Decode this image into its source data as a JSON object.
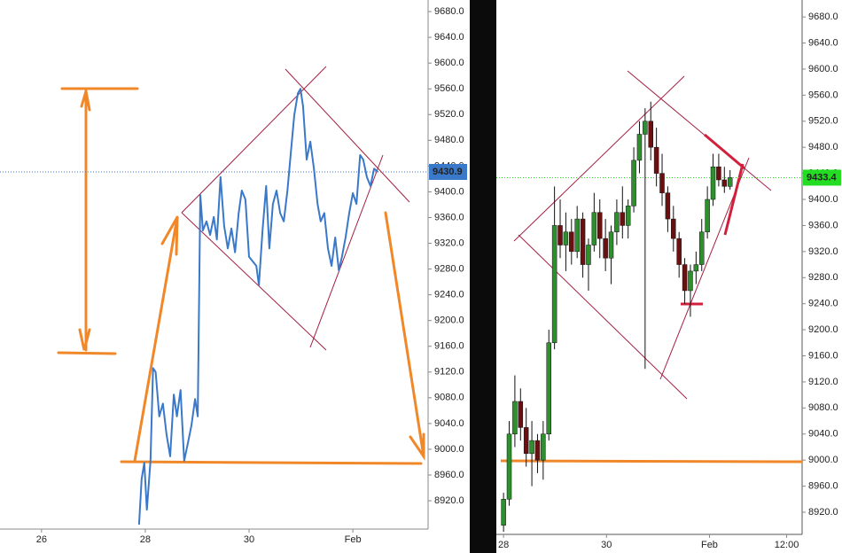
{
  "chart_data": [
    {
      "type": "line",
      "color": "#3a78c9",
      "x": [
        27.88,
        27.93,
        27.98,
        28.03,
        28.1,
        28.15,
        28.2,
        28.27,
        28.34,
        28.41,
        28.48,
        28.55,
        28.61,
        28.68,
        28.75,
        28.82,
        28.89,
        28.96,
        29.01,
        29.06,
        29.11,
        29.18,
        29.25,
        29.32,
        29.38,
        29.45,
        29.52,
        29.59,
        29.66,
        29.73,
        29.8,
        29.86,
        29.93,
        30.0,
        30.07,
        30.14,
        30.19,
        30.26,
        30.33,
        30.39,
        30.46,
        30.53,
        30.6,
        30.67,
        30.74,
        30.8,
        30.87,
        30.94,
        30.99,
        31.04,
        31.11,
        31.18,
        31.25,
        31.32,
        31.38,
        31.45,
        31.52,
        31.59,
        31.66,
        31.73,
        31.79,
        31.86,
        31.93,
        32.0,
        32.07,
        32.14,
        32.2,
        32.27,
        32.34,
        32.41,
        32.48
      ],
      "values": [
        8883,
        8954,
        8979,
        8906,
        8982,
        9126,
        9120,
        9051,
        9071,
        9023,
        8989,
        9085,
        9051,
        9092,
        8982,
        9009,
        9037,
        9078,
        9051,
        9395,
        9340,
        9354,
        9333,
        9361,
        9326,
        9423,
        9347,
        9312,
        9343,
        9306,
        9367,
        9402,
        9388,
        9299,
        9292,
        9285,
        9255,
        9340,
        9409,
        9312,
        9381,
        9402,
        9367,
        9354,
        9402,
        9457,
        9519,
        9553,
        9560,
        9533,
        9450,
        9478,
        9436,
        9381,
        9354,
        9367,
        9312,
        9285,
        9329,
        9278,
        9299,
        9329,
        9367,
        9398,
        9381,
        9457,
        9450,
        9423,
        9409,
        9436,
        9431
      ],
      "last_price": 9430.9,
      "last_color": "#3a78c9",
      "xlim": [
        25.2,
        33.45
      ],
      "ylim": [
        8876,
        9698
      ],
      "xticks": [
        26,
        28,
        30,
        {
          "value": 32,
          "label": "Feb"
        }
      ],
      "yticks": [
        {
          "value": 9680,
          "label": "9680.0"
        },
        {
          "value": 9640,
          "label": "9640.0"
        },
        {
          "value": 9600,
          "label": "9600.0"
        },
        {
          "value": 9560,
          "label": "9560.0"
        },
        {
          "value": 9520,
          "label": "9520.0"
        },
        {
          "value": 9480,
          "label": "9480.0"
        },
        {
          "value": 9440,
          "label": "9440.0"
        },
        {
          "value": 9400,
          "label": "9400.0"
        },
        {
          "value": 9360,
          "label": "9360.0"
        },
        {
          "value": 9320,
          "label": "9320.0"
        },
        {
          "value": 9280,
          "label": "9280.0"
        },
        {
          "value": 9240,
          "label": "9240.0"
        },
        {
          "value": 9200,
          "label": "9200.0"
        },
        {
          "value": 9160,
          "label": "9160.0"
        },
        {
          "value": 9120,
          "label": "9120.0"
        },
        {
          "value": 9080,
          "label": "9080.0"
        },
        {
          "value": 9040,
          "label": "9040.0"
        },
        {
          "value": 9000,
          "label": "9000.0"
        },
        {
          "value": 8960,
          "label": "8960.0"
        },
        {
          "value": 8920,
          "label": "8920.0"
        }
      ]
    },
    {
      "type": "candlestick",
      "up_color": "#2f8f2f",
      "down_color": "#6a1010",
      "x": [
        28.0,
        28.11,
        28.22,
        28.33,
        28.44,
        28.55,
        28.66,
        28.77,
        28.88,
        28.99,
        29.1,
        29.21,
        29.32,
        29.43,
        29.54,
        29.65,
        29.76,
        29.87,
        29.98,
        30.09,
        30.2,
        30.31,
        30.42,
        30.53,
        30.64,
        30.75,
        30.86,
        30.97,
        31.08,
        31.19,
        31.3,
        31.41,
        31.52,
        31.63,
        31.74,
        31.85,
        31.96,
        32.07,
        32.18,
        32.29,
        32.4
      ],
      "open": [
        8900,
        8940,
        9040,
        9090,
        9050,
        9010,
        9030,
        9000,
        9040,
        9180,
        9360,
        9330,
        9350,
        9320,
        9370,
        9300,
        9330,
        9380,
        9340,
        9310,
        9350,
        9380,
        9360,
        9390,
        9460,
        9500,
        9520,
        9480,
        9440,
        9410,
        9370,
        9340,
        9300,
        9260,
        9290,
        9300,
        9350,
        9400,
        9450,
        9430,
        9420
      ],
      "high": [
        8950,
        9060,
        9130,
        9110,
        9080,
        9060,
        9040,
        9060,
        9200,
        9420,
        9400,
        9380,
        9370,
        9390,
        9380,
        9340,
        9410,
        9400,
        9370,
        9360,
        9400,
        9420,
        9400,
        9480,
        9520,
        9540,
        9550,
        9510,
        9470,
        9420,
        9390,
        9350,
        9310,
        9300,
        9320,
        9370,
        9420,
        9470,
        9470,
        9450,
        9445
      ],
      "low": [
        8890,
        8930,
        9020,
        9030,
        8990,
        8960,
        8980,
        8970,
        9030,
        9170,
        9310,
        9290,
        9300,
        9310,
        9280,
        9260,
        9320,
        9310,
        9290,
        9270,
        9330,
        9340,
        9340,
        9380,
        9440,
        9140,
        9460,
        9420,
        9390,
        9350,
        9320,
        9280,
        9240,
        9220,
        9270,
        9290,
        9340,
        9390,
        9420,
        9410,
        9415
      ],
      "close": [
        8940,
        9040,
        9090,
        9050,
        9010,
        9030,
        9000,
        9040,
        9180,
        9360,
        9330,
        9350,
        9320,
        9370,
        9300,
        9330,
        9380,
        9340,
        9310,
        9350,
        9380,
        9360,
        9390,
        9460,
        9500,
        9520,
        9480,
        9440,
        9410,
        9370,
        9340,
        9300,
        9260,
        9290,
        9300,
        9350,
        9400,
        9450,
        9430,
        9420,
        9433.4
      ],
      "last_price": 9433.4,
      "last_color": "#22dd22",
      "xlim": [
        27.86,
        33.8
      ],
      "ylim": [
        8886,
        9706
      ],
      "xticks": [
        28,
        30,
        {
          "value": 32,
          "label": "Feb"
        },
        {
          "value": 33.5,
          "label": "12:00"
        }
      ],
      "yticks": [
        {
          "value": 9680,
          "label": "9680.0"
        },
        {
          "value": 9640,
          "label": "9640.0"
        },
        {
          "value": 9600,
          "label": "9600.0"
        },
        {
          "value": 9560,
          "label": "9560.0"
        },
        {
          "value": 9520,
          "label": "9520.0"
        },
        {
          "value": 9480,
          "label": "9480.0"
        },
        {
          "value": 9440,
          "label": "9440.0"
        },
        {
          "value": 9400,
          "label": "9400.0"
        },
        {
          "value": 9360,
          "label": "9360.0"
        },
        {
          "value": 9320,
          "label": "9320.0"
        },
        {
          "value": 9280,
          "label": "9280.0"
        },
        {
          "value": 9240,
          "label": "9240.0"
        },
        {
          "value": 9200,
          "label": "9200.0"
        },
        {
          "value": 9160,
          "label": "9160.0"
        },
        {
          "value": 9120,
          "label": "9120.0"
        },
        {
          "value": 9080,
          "label": "9080.0"
        },
        {
          "value": 9040,
          "label": "9040.0"
        },
        {
          "value": 9000,
          "label": "9000.0"
        },
        {
          "value": 8960,
          "label": "8960.0"
        },
        {
          "value": 8920,
          "label": "8920.0"
        }
      ]
    }
  ]
}
